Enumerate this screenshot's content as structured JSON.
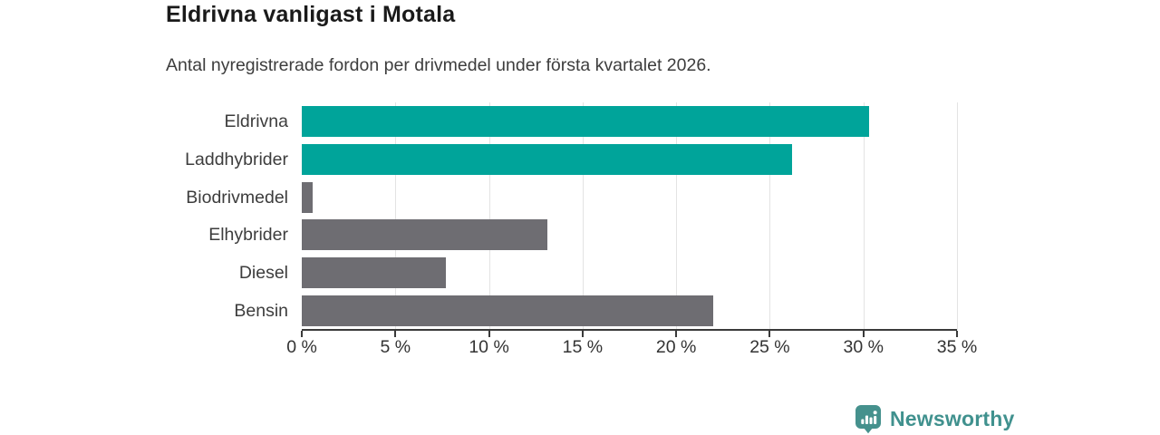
{
  "header": {
    "title": "Eldrivna vanligast i Motala",
    "subtitle": "Antal nyregistrerade fordon per drivmedel under första kvartalet 2026."
  },
  "chart_data": {
    "type": "bar",
    "orientation": "horizontal",
    "title": "Eldrivna vanligast i Motala",
    "subtitle": "Antal nyregistrerade fordon per drivmedel under första kvartalet 2026.",
    "categories": [
      "Eldrivna",
      "Laddhybrider",
      "Biodrivmedel",
      "Elhybrider",
      "Diesel",
      "Bensin"
    ],
    "values": [
      30.3,
      26.2,
      0.6,
      13.1,
      7.7,
      22.0
    ],
    "unit": "%",
    "bar_colors": [
      "#00A49A",
      "#00A49A",
      "#6E6D72",
      "#6E6D72",
      "#6E6D72",
      "#6E6D72"
    ],
    "xlim": [
      0,
      35
    ],
    "x_ticks": [
      0,
      5,
      10,
      15,
      20,
      25,
      30,
      35
    ],
    "x_tick_labels": [
      "0 %",
      "5 %",
      "10 %",
      "15 %",
      "20 %",
      "25 %",
      "30 %",
      "35 %"
    ],
    "grid": "vertical-only",
    "legend_position": "none"
  },
  "colors": {
    "accent_teal": "#00A49A",
    "bar_gray": "#6E6D72",
    "gridline": "#E3E3E3",
    "axis": "#3A3A3A",
    "title_text": "#1A1A1A",
    "body_text": "#3D3D3D",
    "brand_teal": "#40918E"
  },
  "branding": {
    "wordmark": "Newsworthy",
    "logo_icon": "newsworthy-barchart-pin-icon"
  }
}
